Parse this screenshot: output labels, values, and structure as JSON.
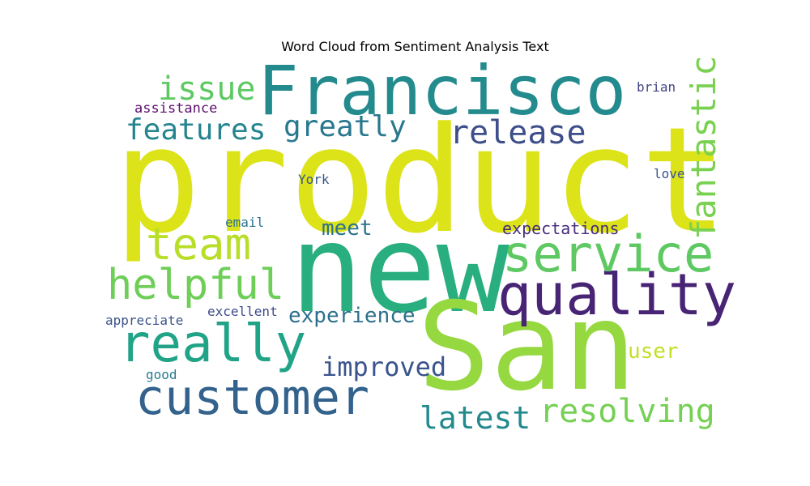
{
  "title": "Word Cloud from Sentiment Analysis Text",
  "words": {
    "product": {
      "text": "product",
      "color": "#dce319"
    },
    "new": {
      "text": "new",
      "color": "#29af7f"
    },
    "san": {
      "text": "San",
      "color": "#95d840"
    },
    "francisco": {
      "text": "Francisco",
      "color": "#238a8d"
    },
    "quality": {
      "text": "quality",
      "color": "#482475"
    },
    "service": {
      "text": "service",
      "color": "#5ec962"
    },
    "customer": {
      "text": "customer",
      "color": "#33638d"
    },
    "really": {
      "text": "really",
      "color": "#20a386"
    },
    "helpful": {
      "text": "helpful",
      "color": "#6ece58"
    },
    "team": {
      "text": "team",
      "color": "#b8de29"
    },
    "fantastic": {
      "text": "fantastic",
      "color": "#7ad151"
    },
    "release": {
      "text": "release",
      "color": "#3d4e8a"
    },
    "greatly": {
      "text": "greatly",
      "color": "#2a788e"
    },
    "features": {
      "text": "features",
      "color": "#25848e"
    },
    "issue": {
      "text": "issue",
      "color": "#5ec962"
    },
    "resolving": {
      "text": "resolving",
      "color": "#75d054"
    },
    "latest": {
      "text": "latest",
      "color": "#238a8d"
    },
    "improved": {
      "text": "improved",
      "color": "#3a548c"
    },
    "experience": {
      "text": "experience",
      "color": "#2d708e"
    },
    "meet": {
      "text": "meet",
      "color": "#2c728e"
    },
    "expectations": {
      "text": "expectations",
      "color": "#472d7b"
    },
    "user": {
      "text": "user",
      "color": "#c2df23"
    },
    "assistance": {
      "text": "assistance",
      "color": "#5a0f6e"
    },
    "brian": {
      "text": "brian",
      "color": "#414487"
    },
    "york": {
      "text": "York",
      "color": "#39568c"
    },
    "love": {
      "text": "love",
      "color": "#3b528b"
    },
    "email": {
      "text": "email",
      "color": "#2c728e"
    },
    "appreciate": {
      "text": "appreciate",
      "color": "#3b528b"
    },
    "excellent": {
      "text": "excellent",
      "color": "#3e4a89"
    },
    "good": {
      "text": "good",
      "color": "#297b8e"
    }
  }
}
